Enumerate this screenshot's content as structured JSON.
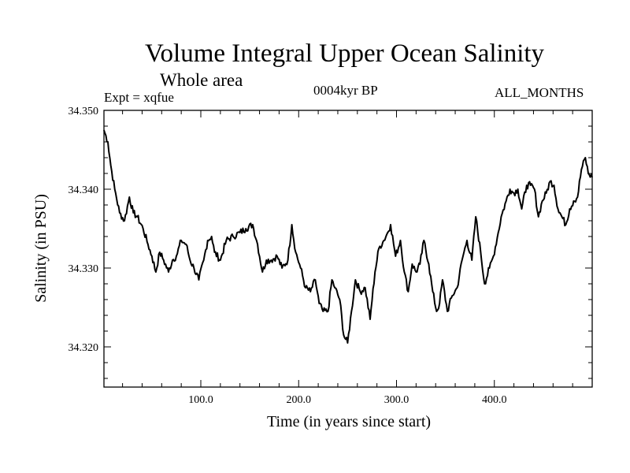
{
  "chart_data": {
    "type": "line",
    "title": "Volume Integral Upper Ocean Salinity",
    "subtitle": "Whole area",
    "experiment": "Expt = xqfue",
    "period": "0004kyr BP",
    "months": "ALL_MONTHS",
    "xlabel": "Time (in years since start)",
    "ylabel": "Salinity (in PSU)",
    "xlim": [
      1,
      500
    ],
    "ylim": [
      34.3149,
      34.35
    ],
    "x_ticks": [
      100,
      200,
      300,
      400
    ],
    "x_tick_labels": [
      "100.0",
      "200.0",
      "300.0",
      "400.0"
    ],
    "y_ticks": [
      34.32,
      34.33,
      34.34,
      34.35
    ],
    "y_tick_labels": [
      "34.320",
      "34.330",
      "34.340",
      "34.350"
    ],
    "series": [
      {
        "name": "salinity",
        "x": [
          1,
          5,
          8,
          12,
          17,
          22,
          27,
          31,
          35,
          41,
          46,
          50,
          54,
          58,
          62,
          67,
          71,
          75,
          80,
          85,
          89,
          93,
          98,
          103,
          107,
          111,
          114,
          120,
          126,
          133,
          140,
          146,
          153,
          158,
          163,
          167,
          172,
          178,
          183,
          189,
          193,
          197,
          202,
          207,
          212,
          217,
          221,
          225,
          230,
          234,
          237,
          242,
          246,
          250,
          254,
          258,
          263,
          268,
          273,
          278,
          282,
          287,
          291,
          294,
          299,
          304,
          308,
          312,
          316,
          320,
          324,
          328,
          333,
          337,
          341,
          344,
          347,
          352,
          357,
          362,
          367,
          372,
          377,
          381,
          386,
          390,
          395,
          399,
          404,
          407,
          412,
          416,
          420,
          424,
          428,
          433,
          437,
          441,
          445,
          449,
          453,
          457,
          461,
          465,
          469,
          473,
          477,
          481,
          485,
          489,
          493,
          496,
          500
        ],
        "y": [
          34.3475,
          34.346,
          34.343,
          34.34,
          34.337,
          34.336,
          34.339,
          34.337,
          34.3365,
          34.335,
          34.333,
          34.3315,
          34.3295,
          34.332,
          34.331,
          34.3295,
          34.331,
          34.3315,
          34.3335,
          34.333,
          34.331,
          34.33,
          34.3285,
          34.331,
          34.3335,
          34.334,
          34.332,
          34.331,
          34.3335,
          34.334,
          34.3345,
          34.335,
          34.3355,
          34.333,
          34.3295,
          34.331,
          34.331,
          34.3315,
          34.33,
          34.331,
          34.3355,
          34.332,
          34.33,
          34.3275,
          34.327,
          34.3285,
          34.3255,
          34.3245,
          34.3245,
          34.3285,
          34.3275,
          34.326,
          34.3215,
          34.3205,
          34.3245,
          34.3285,
          34.327,
          34.3275,
          34.3235,
          34.3295,
          34.3325,
          34.3335,
          34.3345,
          34.3355,
          34.3315,
          34.3335,
          34.3295,
          34.327,
          34.3305,
          34.3295,
          34.3305,
          34.3335,
          34.3305,
          34.327,
          34.3245,
          34.3255,
          34.3285,
          34.3245,
          34.3265,
          34.3275,
          34.331,
          34.3335,
          34.331,
          34.3365,
          34.332,
          34.328,
          34.33,
          34.3315,
          34.3345,
          34.3365,
          34.3385,
          34.34,
          34.3395,
          34.34,
          34.3375,
          34.3405,
          34.3405,
          34.34,
          34.3365,
          34.3385,
          34.3395,
          34.341,
          34.3405,
          34.3375,
          34.3365,
          34.3355,
          34.3375,
          34.3385,
          34.339,
          34.3425,
          34.344,
          34.342,
          34.3415
        ]
      }
    ],
    "line_color": "#000000"
  }
}
